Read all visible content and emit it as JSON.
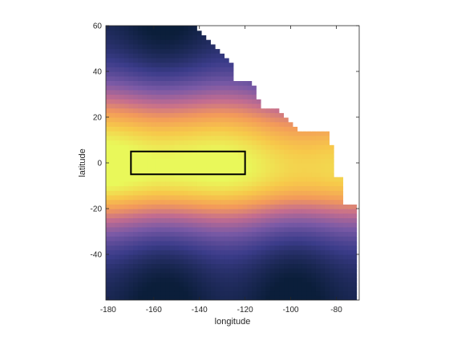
{
  "chart_data": {
    "type": "heatmap",
    "xlabel": "longitude",
    "ylabel": "latitude",
    "xlim": [
      -181,
      -70
    ],
    "ylim": [
      -60,
      60
    ],
    "xticks": [
      -180,
      -160,
      -140,
      -120,
      -100,
      -80
    ],
    "yticks": [
      -40,
      -20,
      0,
      20,
      40,
      60
    ],
    "grid": false,
    "colormap": [
      "#0b1e3a",
      "#3b3c8a",
      "#7b5aa6",
      "#c46d8f",
      "#f39a5a",
      "#f7c84a",
      "#e9f85a"
    ],
    "rectangle": {
      "lon": [
        -170,
        -120
      ],
      "lat": [
        -5,
        5
      ],
      "color": "#000000"
    },
    "land_color": "#ffffff"
  }
}
